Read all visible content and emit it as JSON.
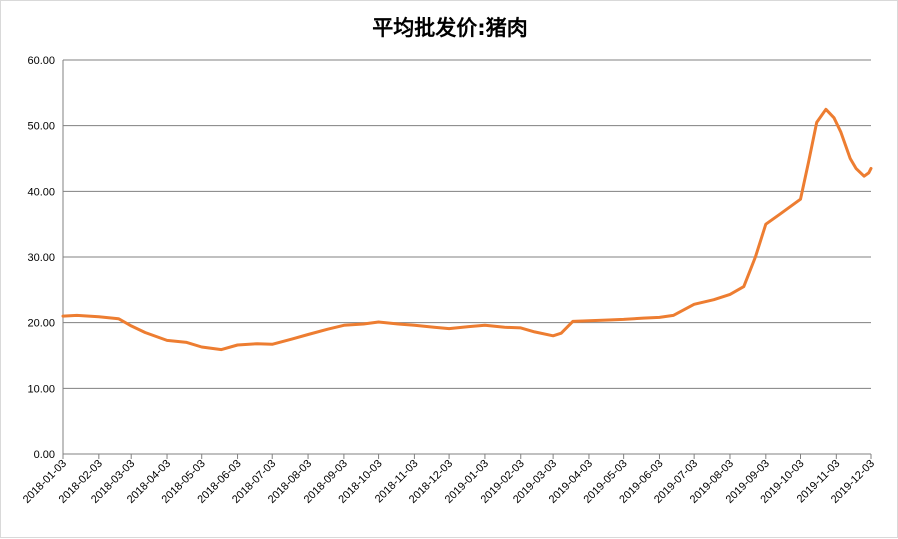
{
  "chart_data": {
    "type": "line",
    "title": "平均批发价:猪肉",
    "xlabel": "",
    "ylabel": "",
    "ylim": [
      0,
      60
    ],
    "y_ticks": [
      "0.00",
      "10.00",
      "20.00",
      "30.00",
      "40.00",
      "50.00",
      "60.00"
    ],
    "x_ticks": [
      "2018-01-03",
      "2018-02-03",
      "2018-03-03",
      "2018-04-03",
      "2018-05-03",
      "2018-06-03",
      "2018-07-03",
      "2018-08-03",
      "2018-09-03",
      "2018-10-03",
      "2018-11-03",
      "2018-12-03",
      "2019-01-03",
      "2019-02-03",
      "2019-03-03",
      "2019-04-03",
      "2019-05-03",
      "2019-06-03",
      "2019-07-03",
      "2019-08-03",
      "2019-09-03",
      "2019-10-03",
      "2019-11-03",
      "2019-12-03"
    ],
    "grid": true,
    "legend": "none",
    "color": "#ED7D31",
    "series": [
      {
        "x": [
          "2018-01-03",
          "2018-01-15",
          "2018-02-03",
          "2018-02-20",
          "2018-03-03",
          "2018-03-15",
          "2018-04-03",
          "2018-04-20",
          "2018-05-03",
          "2018-05-20",
          "2018-06-03",
          "2018-06-20",
          "2018-07-03",
          "2018-07-20",
          "2018-08-03",
          "2018-08-20",
          "2018-09-03",
          "2018-09-20",
          "2018-10-03",
          "2018-10-20",
          "2018-11-03",
          "2018-11-20",
          "2018-12-03",
          "2018-12-20",
          "2019-01-03",
          "2019-01-20",
          "2019-02-03",
          "2019-02-15",
          "2019-03-03",
          "2019-03-10",
          "2019-03-20",
          "2019-04-03",
          "2019-04-20",
          "2019-05-03",
          "2019-05-20",
          "2019-06-03",
          "2019-06-15",
          "2019-07-03",
          "2019-07-20",
          "2019-08-03",
          "2019-08-15",
          "2019-08-25",
          "2019-09-03",
          "2019-09-15",
          "2019-10-03",
          "2019-10-10",
          "2019-10-17",
          "2019-10-25",
          "2019-11-01",
          "2019-11-07",
          "2019-11-15",
          "2019-11-20",
          "2019-11-27",
          "2019-12-01",
          "2019-12-03"
        ],
        "values": [
          21.0,
          21.1,
          20.9,
          20.6,
          19.5,
          18.5,
          17.3,
          17.0,
          16.3,
          15.9,
          16.6,
          16.8,
          16.7,
          17.5,
          18.2,
          19.0,
          19.6,
          19.8,
          20.1,
          19.8,
          19.6,
          19.3,
          19.1,
          19.4,
          19.6,
          19.3,
          19.2,
          18.6,
          18.0,
          18.4,
          20.2,
          20.3,
          20.4,
          20.5,
          20.7,
          20.8,
          21.1,
          22.8,
          23.5,
          24.3,
          25.5,
          30.0,
          35.0,
          36.5,
          38.8,
          44.5,
          50.5,
          52.5,
          51.2,
          49.0,
          45.0,
          43.5,
          42.3,
          42.8,
          43.5
        ]
      }
    ]
  }
}
